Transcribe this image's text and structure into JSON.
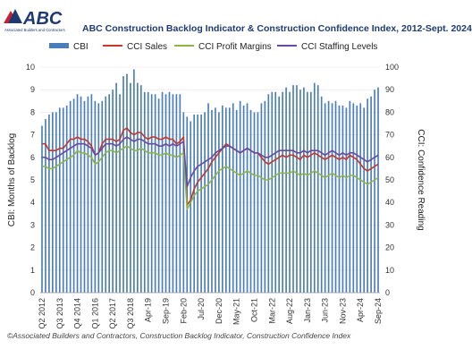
{
  "logo": {
    "text": "ABC",
    "tagline": "Associated Builders and Contractors",
    "colors": {
      "blue": "#1f3a73",
      "red": "#c8202f"
    }
  },
  "footer": "©Associated Builders and Contractors, Construction Backlog Indicator, Construction Confidence Index",
  "chart_data": {
    "type": "bar",
    "title": "ABC Construction Backlog Indicator & Construction Confidence Index, 2012-Sept. 2024",
    "ylabel": "CBI: Months of Backlog",
    "y2label": "CCI: Confidence Reading",
    "ylim": [
      0,
      10
    ],
    "y2lim": [
      0,
      100
    ],
    "yticks": [
      "0",
      "1",
      "2",
      "3",
      "4",
      "5",
      "6",
      "7",
      "8",
      "9",
      "10"
    ],
    "y2ticks": [
      "0",
      "10",
      "20",
      "30",
      "40",
      "50",
      "60",
      "70",
      "80",
      "90",
      "100"
    ],
    "x_tick_labels": [
      "Q2 2012",
      "Q3 2013",
      "Q4 2014",
      "Q1 2016",
      "Q2 2017",
      "Q3 2018",
      "Apr-19",
      "Sep-19",
      "Feb-20",
      "Jul-20",
      "Dec-20",
      "May-21",
      "Oct-21",
      "Mar-22",
      "Aug-22",
      "Jan-23",
      "Jun-23",
      "Nov-23",
      "Apr-24",
      "Sep-24"
    ],
    "x_tick_index": [
      0,
      5,
      10,
      15,
      20,
      25,
      30,
      35,
      40,
      45,
      50,
      55,
      60,
      65,
      70,
      75,
      80,
      85,
      90,
      95
    ],
    "legend": {
      "placement": "top"
    },
    "colors": {
      "CBI": "#4a7ebb",
      "CCI Sales": "#c0392b",
      "CCI Profit Margins": "#8db545",
      "CCI Staffing Levels": "#6a4aa0"
    },
    "series": [
      {
        "name": "CBI",
        "kind": "bar",
        "axis": "left",
        "values": [
          7.4,
          7.7,
          7.9,
          8.0,
          8.0,
          8.2,
          8.2,
          8.3,
          8.5,
          8.6,
          8.8,
          8.7,
          8.5,
          8.7,
          8.8,
          8.5,
          8.4,
          8.5,
          8.7,
          8.8,
          9.0,
          9.3,
          8.8,
          9.6,
          9.7,
          9.3,
          9.9,
          9.3,
          9.2,
          8.9,
          8.9,
          8.8,
          8.8,
          8.6,
          8.9,
          8.8,
          8.9,
          8.8,
          8.8,
          8.8,
          8.0,
          7.8,
          7.6,
          7.9,
          7.9,
          7.9,
          8.0,
          8.4,
          8.1,
          8.2,
          8.0,
          8.3,
          8.2,
          8.2,
          8.4,
          8.1,
          8.5,
          8.3,
          8.4,
          8.1,
          8.0,
          8.0,
          8.4,
          8.5,
          8.8,
          8.9,
          8.9,
          8.7,
          8.9,
          9.1,
          8.9,
          9.2,
          9.2,
          9.0,
          9.1,
          8.9,
          8.9,
          9.3,
          9.2,
          8.7,
          8.4,
          8.5,
          8.4,
          8.5,
          8.3,
          8.3,
          8.2,
          8.5,
          8.4,
          8.3,
          8.4,
          8.2,
          8.6,
          8.7,
          9.0,
          9.1
        ]
      },
      {
        "name": "CCI Sales",
        "kind": "line",
        "axis": "right",
        "values": [
          66,
          66,
          63,
          63,
          63,
          64,
          64,
          66,
          68,
          68,
          69,
          68,
          68,
          67,
          65,
          61,
          62,
          66,
          68,
          68,
          68,
          67,
          68,
          72,
          73,
          71,
          70,
          71,
          71,
          69,
          68,
          69,
          69,
          68,
          68,
          69,
          68,
          68,
          66,
          67,
          69,
          39,
          41,
          46,
          49,
          51,
          53,
          55,
          58,
          60,
          62,
          64,
          66,
          65,
          64,
          63,
          62,
          63,
          64,
          63,
          62,
          62,
          60,
          58,
          57,
          58,
          59,
          60,
          61,
          60,
          61,
          61,
          60,
          59,
          61,
          60,
          61,
          62,
          61,
          60,
          59,
          60,
          61,
          60,
          59,
          60,
          59,
          61,
          60,
          59,
          57,
          55,
          54,
          55,
          56,
          57
        ]
      },
      {
        "name": "CCI Profit Margins",
        "kind": "line",
        "axis": "right",
        "values": [
          56,
          56,
          55,
          55,
          56,
          57,
          58,
          59,
          60,
          61,
          63,
          62,
          62,
          61,
          60,
          57,
          58,
          60,
          62,
          63,
          63,
          62,
          63,
          64,
          65,
          64,
          63,
          63,
          64,
          63,
          62,
          62,
          62,
          61,
          61,
          62,
          61,
          61,
          60,
          61,
          62,
          37,
          40,
          43,
          45,
          46,
          47,
          48,
          50,
          52,
          54,
          55,
          56,
          55,
          54,
          53,
          52,
          53,
          54,
          53,
          52,
          52,
          51,
          50,
          50,
          51,
          52,
          53,
          53,
          53,
          53,
          54,
          53,
          52,
          53,
          52,
          53,
          54,
          53,
          52,
          51,
          52,
          53,
          52,
          51,
          52,
          51,
          52,
          52,
          51,
          50,
          49,
          48,
          49,
          50,
          51
        ]
      },
      {
        "name": "CCI Staffing Levels",
        "kind": "line",
        "axis": "right",
        "values": [
          60,
          60,
          59,
          59,
          60,
          61,
          62,
          63,
          64,
          65,
          66,
          66,
          66,
          65,
          64,
          61,
          62,
          64,
          66,
          66,
          66,
          65,
          66,
          68,
          69,
          68,
          67,
          68,
          68,
          67,
          66,
          66,
          66,
          65,
          65,
          66,
          65,
          66,
          65,
          66,
          67,
          47,
          51,
          54,
          56,
          57,
          58,
          59,
          60,
          62,
          63,
          64,
          65,
          65,
          64,
          63,
          62,
          63,
          64,
          63,
          62,
          62,
          61,
          60,
          60,
          61,
          62,
          63,
          63,
          63,
          63,
          63,
          62,
          62,
          63,
          62,
          63,
          63,
          63,
          62,
          61,
          62,
          63,
          62,
          61,
          62,
          61,
          62,
          62,
          61,
          60,
          59,
          58,
          59,
          60,
          61
        ]
      }
    ]
  }
}
